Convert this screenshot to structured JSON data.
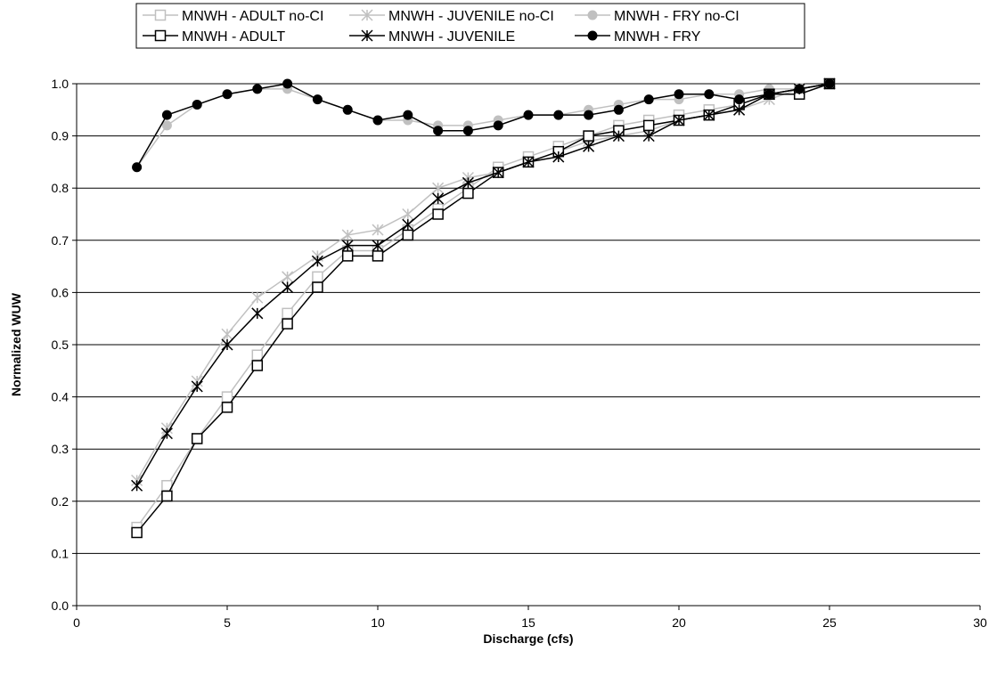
{
  "chart_data": {
    "type": "line",
    "title": "",
    "xlabel": "Discharge (cfs)",
    "ylabel": "Normalized WUW",
    "xlim": [
      0,
      30
    ],
    "ylim": [
      0,
      1.0
    ],
    "x_ticks": [
      0,
      5,
      10,
      15,
      20,
      25,
      30
    ],
    "y_ticks": [
      0.0,
      0.1,
      0.2,
      0.3,
      0.4,
      0.5,
      0.6,
      0.7,
      0.8,
      0.9,
      1.0
    ],
    "y_tick_labels": [
      "0.0",
      "0.1",
      "0.2",
      "0.3",
      "0.4",
      "0.5",
      "0.6",
      "0.7",
      "0.8",
      "0.9",
      "1.0"
    ],
    "grid": "horizontal",
    "legend_position": "top",
    "series": [
      {
        "name": "MNWH - ADULT no-CI",
        "color": "#c0c0c0",
        "marker": "square",
        "x": [
          2,
          3,
          4,
          5,
          6,
          7,
          8,
          9,
          10,
          11,
          12,
          13,
          14,
          15,
          16,
          17,
          18,
          19,
          20,
          21,
          22,
          23,
          24,
          25
        ],
        "y": [
          0.15,
          0.23,
          0.32,
          0.4,
          0.48,
          0.56,
          0.63,
          0.68,
          0.68,
          0.72,
          0.76,
          0.8,
          0.84,
          0.86,
          0.88,
          0.9,
          0.92,
          0.93,
          0.94,
          0.95,
          0.96,
          0.98,
          0.99,
          1.0
        ]
      },
      {
        "name": "MNWH - JUVENILE no-CI",
        "color": "#c0c0c0",
        "marker": "star",
        "x": [
          2,
          3,
          4,
          5,
          6,
          7,
          8,
          9,
          10,
          11,
          12,
          13,
          14,
          15,
          16,
          17,
          18,
          19,
          20,
          21,
          22,
          23,
          24,
          25
        ],
        "y": [
          0.24,
          0.34,
          0.43,
          0.52,
          0.59,
          0.63,
          0.67,
          0.71,
          0.72,
          0.75,
          0.8,
          0.82,
          0.83,
          0.85,
          0.87,
          0.89,
          0.9,
          0.91,
          0.93,
          0.94,
          0.95,
          0.97,
          0.99,
          1.0
        ]
      },
      {
        "name": "MNWH - FRY no-CI",
        "color": "#c0c0c0",
        "marker": "circle",
        "x": [
          2,
          3,
          4,
          5,
          6,
          7,
          8,
          9,
          10,
          11,
          12,
          13,
          14,
          15,
          16,
          17,
          18,
          19,
          20,
          21,
          22,
          23,
          24,
          25
        ],
        "y": [
          0.84,
          0.92,
          0.96,
          0.98,
          0.99,
          0.99,
          0.97,
          0.95,
          0.93,
          0.93,
          0.92,
          0.92,
          0.93,
          0.94,
          0.94,
          0.95,
          0.96,
          0.97,
          0.97,
          0.98,
          0.98,
          0.99,
          0.99,
          1.0
        ]
      },
      {
        "name": "MNWH - ADULT",
        "color": "#000000",
        "marker": "square",
        "x": [
          2,
          3,
          4,
          5,
          6,
          7,
          8,
          9,
          10,
          11,
          12,
          13,
          14,
          15,
          16,
          17,
          18,
          19,
          20,
          21,
          22,
          23,
          24,
          25
        ],
        "y": [
          0.14,
          0.21,
          0.32,
          0.38,
          0.46,
          0.54,
          0.61,
          0.67,
          0.67,
          0.71,
          0.75,
          0.79,
          0.83,
          0.85,
          0.87,
          0.9,
          0.91,
          0.92,
          0.93,
          0.94,
          0.96,
          0.98,
          0.98,
          1.0
        ]
      },
      {
        "name": "MNWH - JUVENILE",
        "color": "#000000",
        "marker": "star",
        "x": [
          2,
          3,
          4,
          5,
          6,
          7,
          8,
          9,
          10,
          11,
          12,
          13,
          14,
          15,
          16,
          17,
          18,
          19,
          20,
          21,
          22,
          23,
          24,
          25
        ],
        "y": [
          0.23,
          0.33,
          0.42,
          0.5,
          0.56,
          0.61,
          0.66,
          0.69,
          0.69,
          0.73,
          0.78,
          0.81,
          0.83,
          0.85,
          0.86,
          0.88,
          0.9,
          0.9,
          0.93,
          0.94,
          0.95,
          0.98,
          0.99,
          1.0
        ]
      },
      {
        "name": "MNWH - FRY",
        "color": "#000000",
        "marker": "circle",
        "x": [
          2,
          3,
          4,
          5,
          6,
          7,
          8,
          9,
          10,
          11,
          12,
          13,
          14,
          15,
          16,
          17,
          18,
          19,
          20,
          21,
          22,
          23,
          24,
          25
        ],
        "y": [
          0.84,
          0.94,
          0.96,
          0.98,
          0.99,
          1.0,
          0.97,
          0.95,
          0.93,
          0.94,
          0.91,
          0.91,
          0.92,
          0.94,
          0.94,
          0.94,
          0.95,
          0.97,
          0.98,
          0.98,
          0.97,
          0.98,
          0.99,
          1.0
        ]
      }
    ]
  }
}
